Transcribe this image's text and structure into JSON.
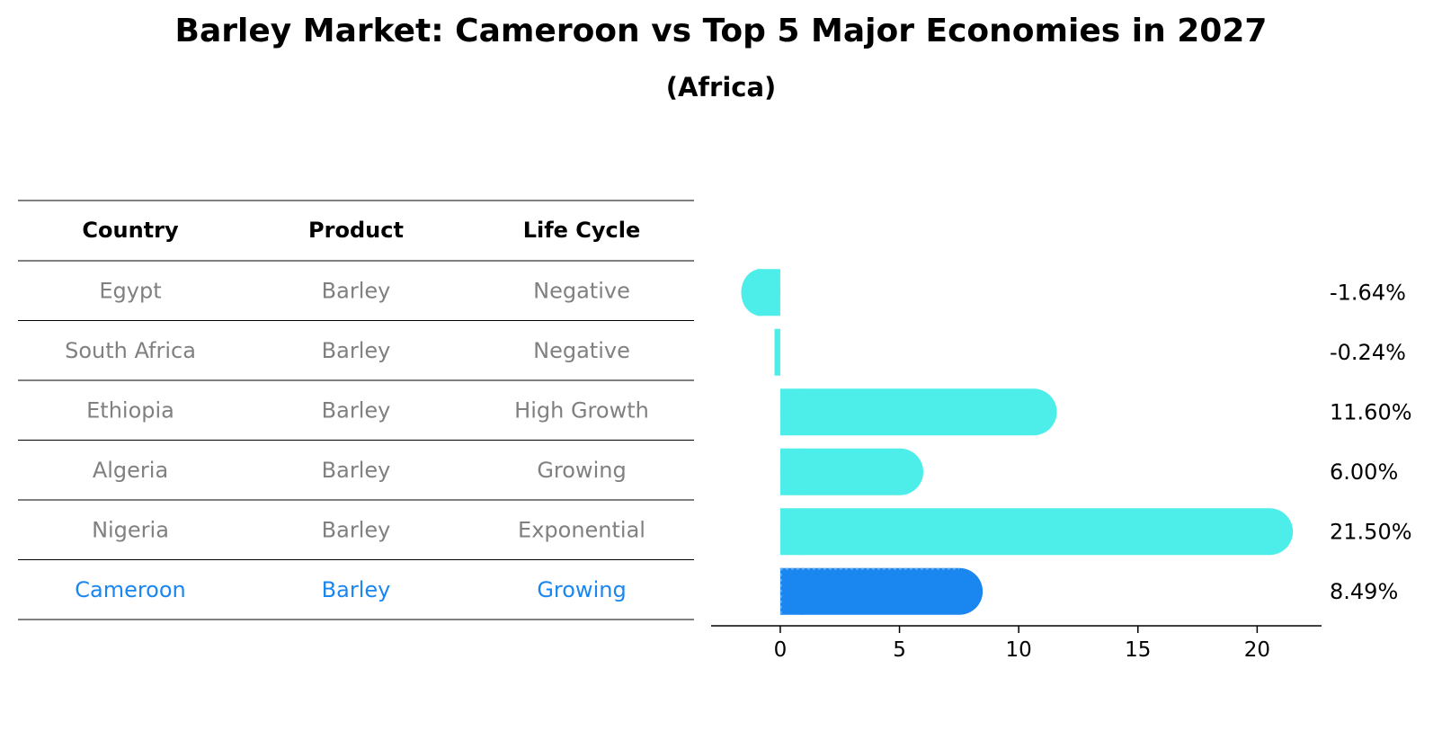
{
  "title": "Barley Market: Cameroon vs Top 5 Major Economies in 2027",
  "subtitle": "(Africa)",
  "colors": {
    "bar": "#4DEEEA",
    "highlight": "#1A86F0",
    "muted_text": "#808080",
    "line": "#000000"
  },
  "table": {
    "headers": [
      "Country",
      "Product",
      "Life Cycle"
    ],
    "rows": [
      {
        "country": "Egypt",
        "product": "Barley",
        "life_cycle": "Negative",
        "highlight": false
      },
      {
        "country": "South Africa",
        "product": "Barley",
        "life_cycle": "Negative",
        "highlight": false
      },
      {
        "country": "Ethiopia",
        "product": "Barley",
        "life_cycle": "High Growth",
        "highlight": false
      },
      {
        "country": "Algeria",
        "product": "Barley",
        "life_cycle": "Growing",
        "highlight": false
      },
      {
        "country": "Nigeria",
        "product": "Barley",
        "life_cycle": "Exponential",
        "highlight": false
      },
      {
        "country": "Cameroon",
        "product": "Barley",
        "life_cycle": "Growing",
        "highlight": true
      }
    ]
  },
  "chart_data": {
    "type": "bar",
    "orientation": "horizontal",
    "categories": [
      "Egypt",
      "South Africa",
      "Ethiopia",
      "Algeria",
      "Nigeria",
      "Cameroon"
    ],
    "values": [
      -1.64,
      -0.24,
      11.6,
      6.0,
      21.5,
      8.49
    ],
    "value_labels": [
      "-1.64%",
      "-0.24%",
      "11.60%",
      "6.00%",
      "21.50%",
      "8.49%"
    ],
    "highlight_category": "Cameroon",
    "xlim": [
      -2.9,
      22.7
    ],
    "xticks": [
      0,
      5,
      10,
      15,
      20
    ],
    "grid": false
  }
}
